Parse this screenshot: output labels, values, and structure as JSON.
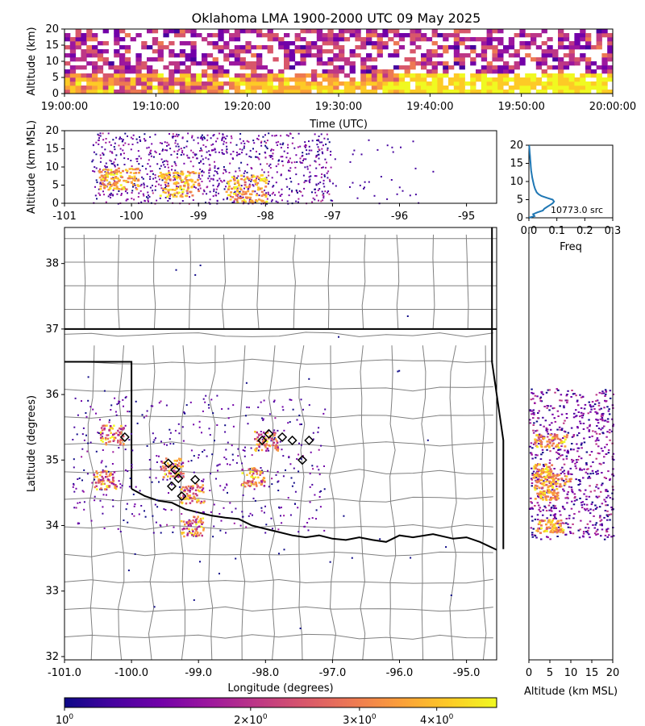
{
  "title": "Oklahoma LMA 1900-2000 UTC 09 May 2025",
  "colors": {
    "colormap": [
      "#0d0887",
      "#46039f",
      "#7201a8",
      "#9c179e",
      "#bd3786",
      "#d8576b",
      "#ed7953",
      "#fb9f3a",
      "#fdca26",
      "#f0f921"
    ],
    "histogram_line": "#1f77b4",
    "county_lines": "#808080",
    "state_lines": "#000000",
    "station_marker": "#000000"
  },
  "chart_data": [
    {
      "id": "time_height",
      "type": "heatmap",
      "xlabel": "Time (UTC)",
      "ylabel": "Altitude (km)",
      "xticks": [
        "19:00:00",
        "19:10:00",
        "19:20:00",
        "19:30:00",
        "19:40:00",
        "19:50:00",
        "20:00:00"
      ],
      "xlim": [
        "19:00:00",
        "20:00:00"
      ],
      "yticks": [
        0,
        5,
        10,
        15,
        20
      ],
      "ylim": [
        0,
        20
      ],
      "description_of_density": "sources at all altitudes all hour; densest 0-6 km, saturating after 19:40"
    },
    {
      "id": "lon_height",
      "type": "heatmap",
      "xlabel": "",
      "ylabel": "Altitude (km MSL)",
      "xticks": [
        -101,
        -100,
        -99,
        -98,
        -97,
        -96,
        -95
      ],
      "xlim": [
        -101,
        -94.55
      ],
      "yticks": [
        0,
        5,
        10,
        15,
        20
      ],
      "ylim": [
        0,
        20
      ],
      "dense_cores": [
        {
          "lon": -100.2,
          "alt_min": 4,
          "alt_max": 10
        },
        {
          "lon": -99.3,
          "alt_min": 2,
          "alt_max": 9
        },
        {
          "lon": -98.3,
          "alt_min": 0.5,
          "alt_max": 8
        }
      ]
    },
    {
      "id": "altitude_histogram",
      "type": "line",
      "xlabel": "Freq",
      "ylabel": "",
      "xticks": [
        0.0,
        0.1,
        0.2,
        0.3
      ],
      "xlim": [
        0.0,
        0.3
      ],
      "yticks": [
        0,
        5,
        10,
        15,
        20
      ],
      "ylim": [
        0,
        20
      ],
      "annotation": "10773.0 src",
      "series": [
        {
          "alt": [
            0,
            0.5,
            1,
            1.5,
            2,
            2.5,
            3,
            3.5,
            4,
            4.5,
            5,
            5.5,
            6,
            6.5,
            7,
            8,
            9,
            10,
            11,
            12,
            13,
            14,
            15,
            16,
            17,
            18,
            19,
            20
          ],
          "freq": [
            0.0,
            0.02,
            0.015,
            0.03,
            0.05,
            0.055,
            0.065,
            0.075,
            0.085,
            0.09,
            0.085,
            0.065,
            0.045,
            0.035,
            0.028,
            0.022,
            0.018,
            0.015,
            0.012,
            0.01,
            0.008,
            0.007,
            0.006,
            0.005,
            0.004,
            0.003,
            0.002,
            0.001
          ]
        }
      ]
    },
    {
      "id": "plan_view",
      "type": "scatter",
      "xlabel": "Longitude (degrees)",
      "ylabel": "Latitude (degrees)",
      "xticks": [
        "-101.0",
        "-100.0",
        "-99.0",
        "-98.0",
        "-97.0",
        "-96.0",
        "-95.0"
      ],
      "xlim": [
        -101.0,
        -94.55
      ],
      "yticks": [
        32,
        33,
        34,
        35,
        36,
        37,
        38
      ],
      "ylim": [
        31.95,
        38.55
      ],
      "dense_clusters": [
        {
          "lon": -100.3,
          "lat": 35.4
        },
        {
          "lon": -100.4,
          "lat": 34.7
        },
        {
          "lon": -99.4,
          "lat": 34.9
        },
        {
          "lon": -99.1,
          "lat": 34.5
        },
        {
          "lon": -99.1,
          "lat": 34.0
        },
        {
          "lon": -98.2,
          "lat": 34.75
        },
        {
          "lon": -98.0,
          "lat": 35.3
        }
      ],
      "stations": [
        {
          "lon": -100.1,
          "lat": 35.35
        },
        {
          "lon": -99.45,
          "lat": 34.95
        },
        {
          "lon": -99.35,
          "lat": 34.85
        },
        {
          "lon": -99.3,
          "lat": 34.72
        },
        {
          "lon": -99.05,
          "lat": 34.7
        },
        {
          "lon": -99.4,
          "lat": 34.6
        },
        {
          "lon": -99.25,
          "lat": 34.45
        },
        {
          "lon": -98.05,
          "lat": 35.3
        },
        {
          "lon": -97.95,
          "lat": 35.4
        },
        {
          "lon": -97.75,
          "lat": 35.35
        },
        {
          "lon": -97.6,
          "lat": 35.3
        },
        {
          "lon": -97.35,
          "lat": 35.3
        },
        {
          "lon": -97.45,
          "lat": 35.0
        }
      ]
    },
    {
      "id": "lat_height",
      "type": "heatmap",
      "xlabel": "Altitude (km MSL)",
      "ylabel": "",
      "xticks": [
        0,
        5,
        10,
        15,
        20
      ],
      "xlim": [
        0,
        20
      ],
      "ylim": [
        31.95,
        38.55
      ]
    },
    {
      "id": "colorbar",
      "type": "heatmap",
      "scale": "log",
      "ticks": [
        "10^0",
        "2×10^0",
        "3×10^0",
        "4×10^0"
      ],
      "tick_values": [
        1,
        2,
        3,
        4
      ],
      "range": [
        1,
        5
      ]
    }
  ]
}
